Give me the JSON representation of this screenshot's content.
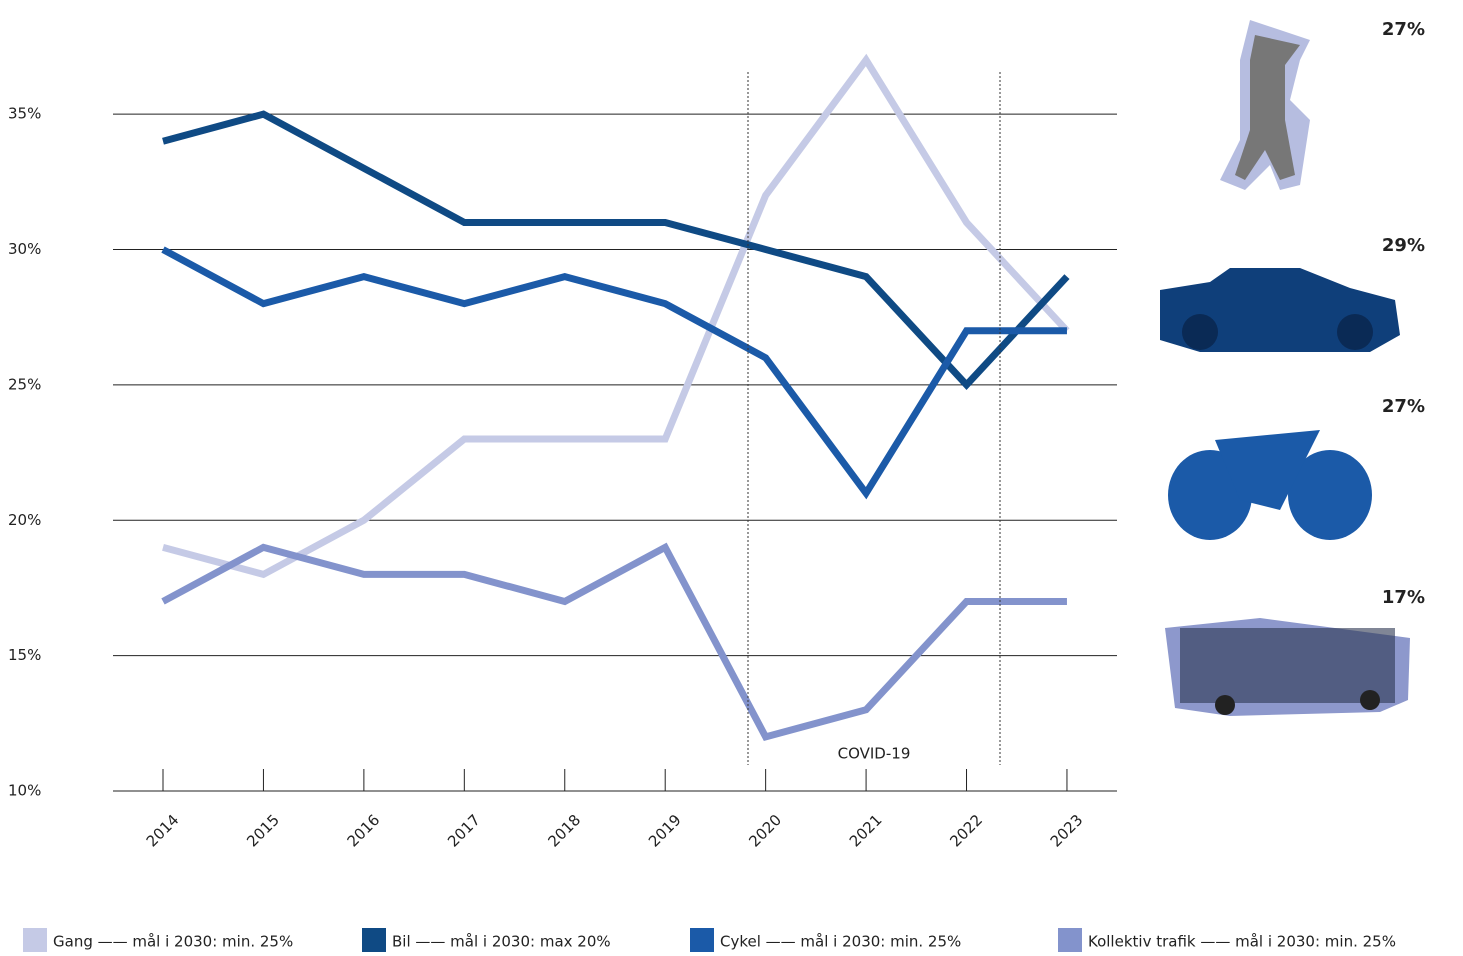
{
  "chart_data": {
    "type": "line",
    "categories": [
      "2014",
      "2015",
      "2016",
      "2017",
      "2018",
      "2019",
      "2020",
      "2021",
      "2022",
      "2023"
    ],
    "series": [
      {
        "name": "Gang —— mål i 2030: min. 25%",
        "color": "#c5cae6",
        "values": [
          19,
          18,
          20,
          23,
          23,
          23,
          32,
          37,
          31,
          27
        ]
      },
      {
        "name": "Bil —— mål i 2030: max 20%",
        "color": "#0f4a84",
        "values": [
          34,
          35,
          33,
          31,
          31,
          31,
          30,
          29,
          25,
          29
        ]
      },
      {
        "name": "Cykel —— mål i 2030: min. 25%",
        "color": "#1b5aa8",
        "values": [
          30,
          28,
          29,
          28,
          29,
          28,
          26,
          21,
          27,
          27
        ]
      },
      {
        "name": "Kollektiv trafik —— mål i 2030: min. 25%",
        "color": "#8393cc",
        "values": [
          17,
          19,
          18,
          18,
          17,
          19,
          12,
          13,
          17,
          17
        ]
      }
    ],
    "ylim": [
      10,
      37
    ],
    "yticks": [
      {
        "value": 10,
        "label": "10%"
      },
      {
        "value": 15,
        "label": "15%"
      },
      {
        "value": 20,
        "label": "20%"
      },
      {
        "value": 25,
        "label": "25%"
      },
      {
        "value": 30,
        "label": "30%"
      },
      {
        "value": 35,
        "label": "35%"
      }
    ],
    "grid": true,
    "annotation": "COVID-19",
    "mode_share_labels": [
      "27%",
      "29%",
      "27%",
      "17%"
    ]
  }
}
